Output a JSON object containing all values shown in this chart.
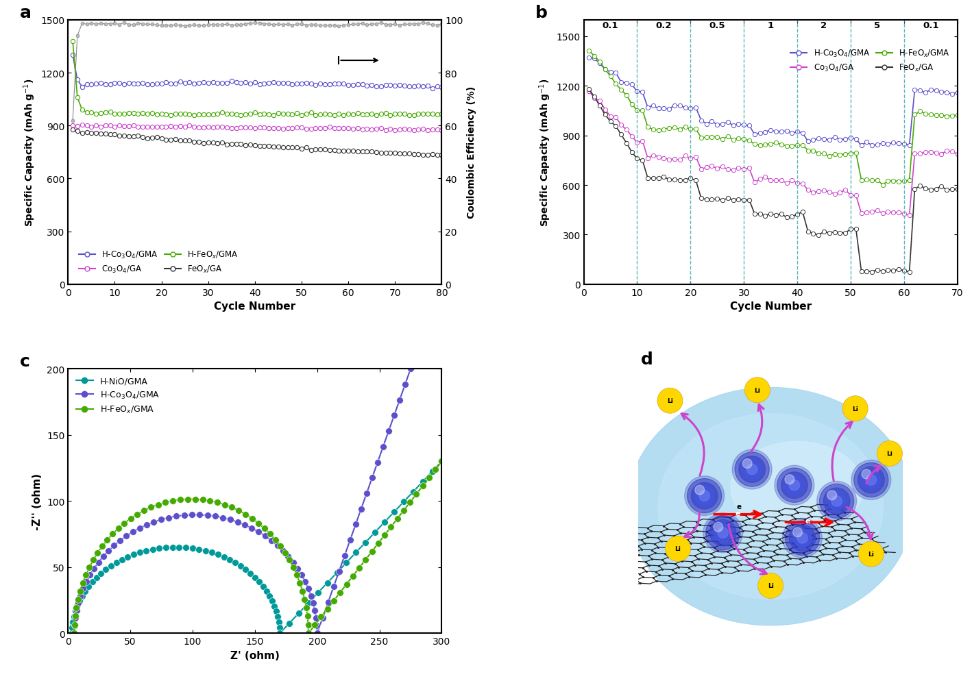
{
  "colors": {
    "blue_purple": "#5B4FCC",
    "magenta": "#CC44CC",
    "green": "#44AA00",
    "black": "#333333",
    "teal": "#009999"
  },
  "panel_a": {
    "xlim": [
      0,
      80
    ],
    "ylim_left": [
      0,
      1500
    ],
    "ylim_right": [
      0,
      100
    ],
    "yticks_left": [
      0,
      300,
      600,
      900,
      1200,
      1500
    ],
    "yticks_right": [
      0,
      20,
      40,
      60,
      80,
      100
    ],
    "xticks": [
      0,
      10,
      20,
      30,
      40,
      50,
      60,
      70,
      80
    ]
  },
  "panel_b": {
    "xlim": [
      0,
      70
    ],
    "ylim": [
      0,
      1600
    ],
    "yticks": [
      0,
      300,
      600,
      900,
      1200,
      1500
    ],
    "xticks": [
      0,
      10,
      20,
      30,
      40,
      50,
      60,
      70
    ],
    "rate_labels": [
      "0.1",
      "0.2",
      "0.5",
      "1",
      "2",
      "5",
      "0.1"
    ],
    "rate_positions": [
      5,
      15,
      25,
      35,
      45,
      55,
      65
    ],
    "dashed_x": [
      10,
      20,
      30,
      40,
      50,
      60
    ]
  },
  "panel_c": {
    "xlim": [
      0,
      300
    ],
    "ylim": [
      0,
      200
    ],
    "yticks": [
      0,
      50,
      100,
      150,
      200
    ],
    "xticks": [
      0,
      50,
      100,
      150,
      200,
      250,
      300
    ]
  }
}
